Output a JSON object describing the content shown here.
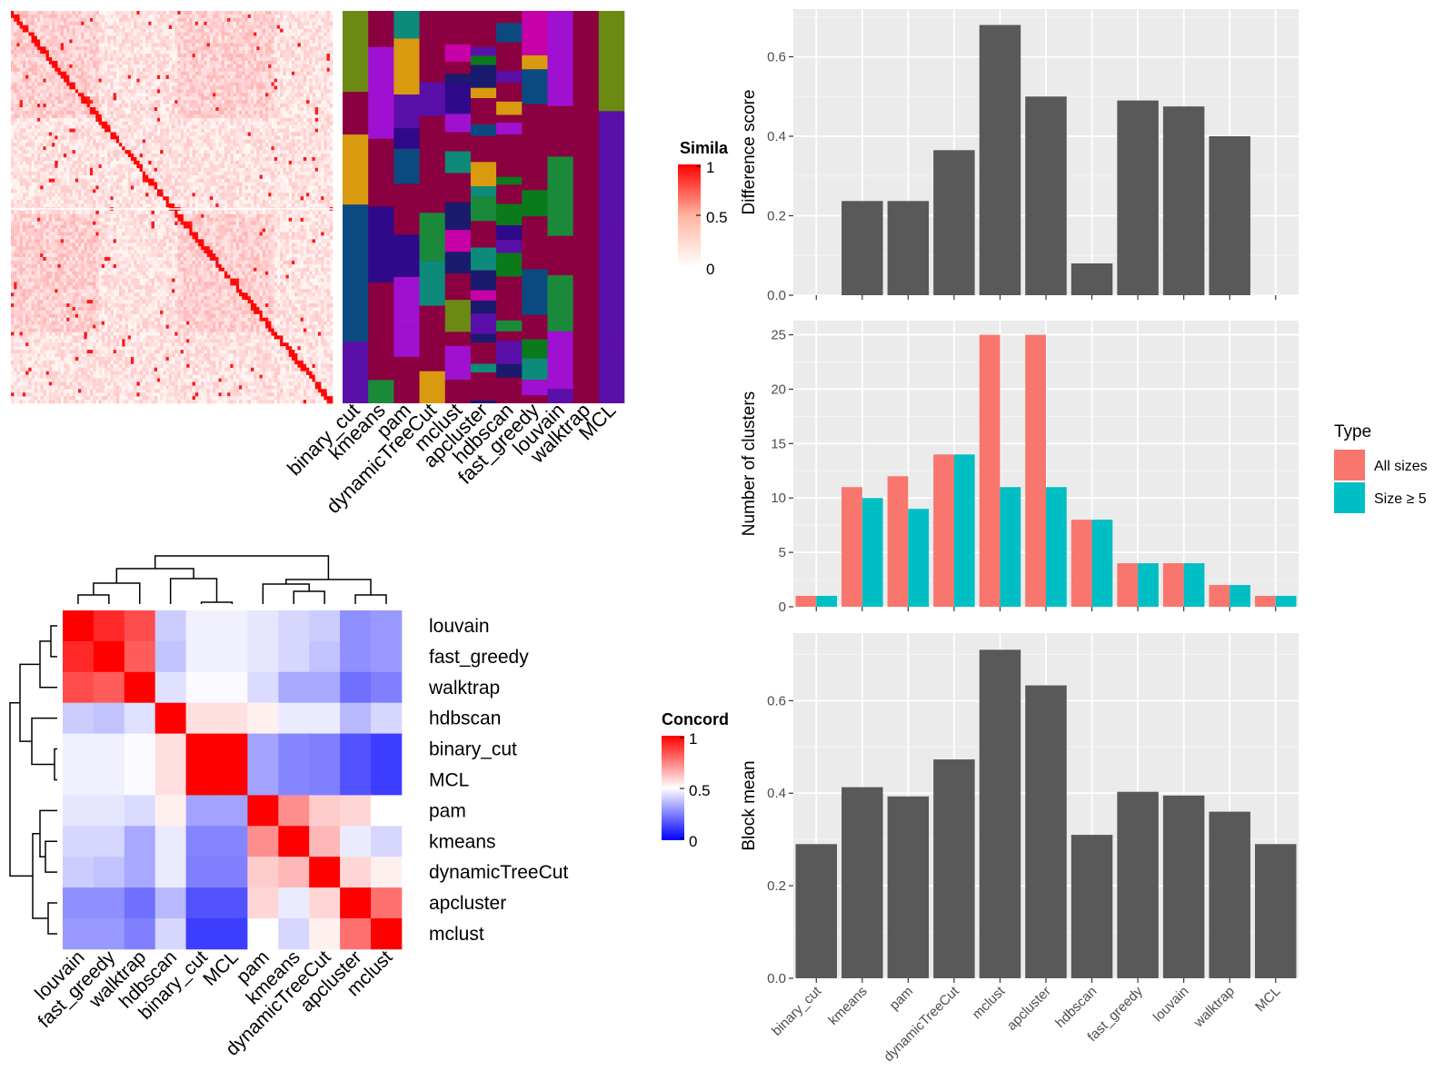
{
  "methods": [
    "binary_cut",
    "kmeans",
    "pam",
    "dynamicTreeCut",
    "mclust",
    "apcluster",
    "hdbscan",
    "fast_greedy",
    "louvain",
    "walktrap",
    "MCL"
  ],
  "similarity_legend": {
    "title": "Simila",
    "ticks": [
      "1",
      "0.5",
      "0"
    ]
  },
  "concordance_legend": {
    "title": "Concord",
    "ticks": [
      "1",
      "0.5",
      "0"
    ]
  },
  "type_legend": {
    "title": "Type",
    "entries": [
      {
        "label": "All sizes",
        "color": "#F8766D"
      },
      {
        "label": "Size ≥ 5",
        "color": "#00BFC4"
      }
    ]
  },
  "heatmap_colors": {
    "high": "#FF0000",
    "mid": "#FFFFFF",
    "low": "#0000FF"
  },
  "chart_data": [
    {
      "id": "difference",
      "type": "bar",
      "categories": [
        "binary_cut",
        "kmeans",
        "pam",
        "dynamicTreeCut",
        "mclust",
        "apcluster",
        "hdbscan",
        "fast_greedy",
        "louvain",
        "walktrap",
        "MCL"
      ],
      "values": [
        0,
        0.237,
        0.237,
        0.365,
        0.68,
        0.5,
        0.08,
        0.49,
        0.475,
        0.4,
        0
      ],
      "ylabel": "Difference score",
      "ylim": [
        0,
        0.72
      ],
      "yticks": [
        0.0,
        0.2,
        0.4,
        0.6
      ],
      "yticklabels": [
        "0.0",
        "0.2",
        "0.4",
        "0.6"
      ]
    },
    {
      "id": "clusters",
      "type": "bar",
      "categories": [
        "binary_cut",
        "kmeans",
        "pam",
        "dynamicTreeCut",
        "mclust",
        "apcluster",
        "hdbscan",
        "fast_greedy",
        "louvain",
        "walktrap",
        "MCL"
      ],
      "series": [
        {
          "name": "All sizes",
          "color": "#F8766D",
          "values": [
            1,
            11,
            12,
            14,
            25,
            25,
            8,
            4,
            4,
            2,
            1
          ]
        },
        {
          "name": "Size ≥ 5",
          "color": "#00BFC4",
          "values": [
            1,
            10,
            9,
            14,
            11,
            11,
            8,
            4,
            4,
            2,
            1
          ]
        }
      ],
      "ylabel": "Number of clusters",
      "ylim": [
        0,
        26.3
      ],
      "yticks": [
        0,
        5,
        10,
        15,
        20,
        25
      ],
      "yticklabels": [
        "0",
        "5",
        "10",
        "15",
        "20",
        "25"
      ]
    },
    {
      "id": "blockmean",
      "type": "bar",
      "categories": [
        "binary_cut",
        "kmeans",
        "pam",
        "dynamicTreeCut",
        "mclust",
        "apcluster",
        "hdbscan",
        "fast_greedy",
        "louvain",
        "walktrap",
        "MCL"
      ],
      "values": [
        0.29,
        0.413,
        0.393,
        0.473,
        0.71,
        0.633,
        0.31,
        0.403,
        0.395,
        0.36,
        0.29
      ],
      "ylabel": "Block mean",
      "ylim": [
        0,
        0.746
      ],
      "yticks": [
        0.0,
        0.2,
        0.4,
        0.6
      ],
      "yticklabels": [
        "0.0",
        "0.2",
        "0.4",
        "0.6"
      ]
    },
    {
      "id": "concordance",
      "type": "heatmap",
      "labels": [
        "louvain",
        "fast_greedy",
        "walktrap",
        "hdbscan",
        "binary_cut",
        "MCL",
        "pam",
        "kmeans",
        "dynamicTreeCut",
        "apcluster",
        "mclust"
      ],
      "matrix": [
        [
          1.0,
          0.92,
          0.85,
          0.4,
          0.47,
          0.47,
          0.45,
          0.42,
          0.4,
          0.28,
          0.3
        ],
        [
          0.92,
          1.0,
          0.82,
          0.38,
          0.47,
          0.47,
          0.45,
          0.42,
          0.38,
          0.28,
          0.3
        ],
        [
          0.85,
          0.82,
          1.0,
          0.44,
          0.49,
          0.49,
          0.43,
          0.33,
          0.33,
          0.22,
          0.25
        ],
        [
          0.4,
          0.38,
          0.44,
          1.0,
          0.56,
          0.56,
          0.53,
          0.46,
          0.46,
          0.36,
          0.42
        ],
        [
          0.47,
          0.47,
          0.49,
          0.56,
          1.0,
          1.0,
          0.32,
          0.26,
          0.25,
          0.16,
          0.12
        ],
        [
          0.47,
          0.47,
          0.49,
          0.56,
          1.0,
          1.0,
          0.32,
          0.26,
          0.25,
          0.16,
          0.12
        ],
        [
          0.45,
          0.45,
          0.43,
          0.53,
          0.32,
          0.32,
          1.0,
          0.72,
          0.6,
          0.58,
          0.5
        ],
        [
          0.42,
          0.42,
          0.33,
          0.46,
          0.26,
          0.26,
          0.72,
          1.0,
          0.64,
          0.46,
          0.42
        ],
        [
          0.4,
          0.38,
          0.33,
          0.46,
          0.25,
          0.25,
          0.6,
          0.64,
          1.0,
          0.58,
          0.53
        ],
        [
          0.28,
          0.28,
          0.22,
          0.36,
          0.16,
          0.16,
          0.58,
          0.46,
          0.58,
          1.0,
          0.78
        ],
        [
          0.3,
          0.3,
          0.25,
          0.42,
          0.12,
          0.12,
          0.5,
          0.42,
          0.53,
          0.78,
          1.0
        ]
      ]
    },
    {
      "id": "similarity",
      "type": "heatmap",
      "columns": [
        "binary_cut",
        "kmeans",
        "pam",
        "dynamicTreeCut",
        "mclust",
        "apcluster",
        "hdbscan",
        "fast_greedy",
        "louvain",
        "walktrap",
        "MCL"
      ],
      "n_items": 110
    }
  ]
}
